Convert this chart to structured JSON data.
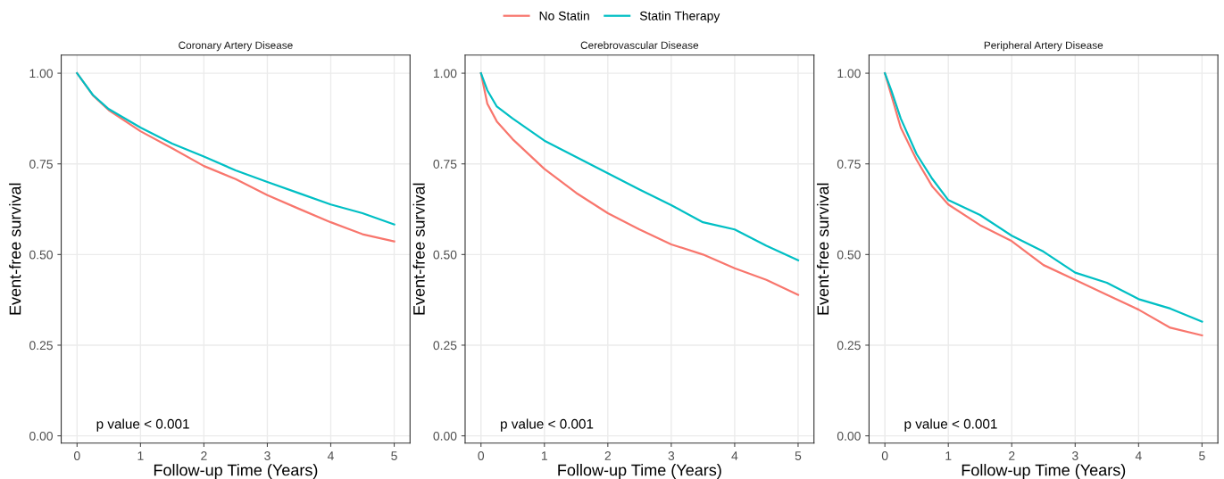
{
  "chart_data": [
    {
      "type": "line",
      "title": "Coronary Artery Disease",
      "xlabel": "Follow-up Time (Years)",
      "ylabel": "Event-free survival",
      "annotations": [
        "p value < 0.001"
      ],
      "legend": "top",
      "grid": true,
      "xlim": [
        -0.25,
        5.25
      ],
      "ylim": [
        -0.02,
        1.05
      ],
      "xticks": [
        0,
        1,
        2,
        3,
        4,
        5
      ],
      "yticks": [
        {
          "value": 0,
          "label": "0.00"
        },
        {
          "value": 0.25,
          "label": "0.25"
        },
        {
          "value": 0.5,
          "label": "0.50"
        },
        {
          "value": 0.75,
          "label": "0.75"
        },
        {
          "value": 1,
          "label": "1.00"
        }
      ],
      "x": [
        0,
        0.25,
        0.5,
        1,
        1.5,
        2,
        2.5,
        3,
        3.5,
        4,
        4.5,
        5
      ],
      "series": [
        {
          "name": "No Statin",
          "color": "#f8766d",
          "values": [
            1.0,
            0.939,
            0.898,
            0.84,
            0.793,
            0.744,
            0.708,
            0.664,
            0.626,
            0.589,
            0.556,
            0.536
          ]
        },
        {
          "name": "Statin Therapy",
          "color": "#00bfc4",
          "values": [
            1.0,
            0.94,
            0.901,
            0.85,
            0.806,
            0.77,
            0.732,
            0.7,
            0.669,
            0.638,
            0.614,
            0.583
          ]
        }
      ]
    },
    {
      "type": "line",
      "title": "Cerebrovascular Disease",
      "xlabel": "Follow-up Time (Years)",
      "ylabel": "Event-free survival",
      "annotations": [
        "p value < 0.001"
      ],
      "grid": true,
      "xlim": [
        -0.25,
        5.25
      ],
      "ylim": [
        -0.02,
        1.05
      ],
      "xticks": [
        0,
        1,
        2,
        3,
        4,
        5
      ],
      "yticks": [
        {
          "value": 0,
          "label": "0.00"
        },
        {
          "value": 0.25,
          "label": "0.25"
        },
        {
          "value": 0.5,
          "label": "0.50"
        },
        {
          "value": 0.75,
          "label": "0.75"
        },
        {
          "value": 1,
          "label": "1.00"
        }
      ],
      "x": [
        0,
        0.1,
        0.25,
        0.5,
        1,
        1.5,
        2,
        2.5,
        3,
        3.5,
        4,
        4.5,
        5
      ],
      "series": [
        {
          "color": "#f8766d",
          "values": [
            1.0,
            0.916,
            0.867,
            0.818,
            0.736,
            0.67,
            0.614,
            0.569,
            0.528,
            0.5,
            0.462,
            0.43,
            0.389
          ]
        },
        {
          "color": "#00bfc4",
          "values": [
            1.0,
            0.953,
            0.908,
            0.875,
            0.814,
            0.769,
            0.724,
            0.679,
            0.636,
            0.589,
            0.569,
            0.524,
            0.484
          ]
        }
      ]
    },
    {
      "type": "line",
      "title": "Peripheral Artery Disease",
      "xlabel": "Follow-up Time (Years)",
      "ylabel": "Event-free survival",
      "annotations": [
        "p value < 0.001"
      ],
      "grid": true,
      "xlim": [
        -0.25,
        5.25
      ],
      "ylim": [
        -0.02,
        1.05
      ],
      "xticks": [
        0,
        1,
        2,
        3,
        4,
        5
      ],
      "yticks": [
        {
          "value": 0,
          "label": "0.00"
        },
        {
          "value": 0.25,
          "label": "0.25"
        },
        {
          "value": 0.5,
          "label": "0.50"
        },
        {
          "value": 0.75,
          "label": "0.75"
        },
        {
          "value": 1,
          "label": "1.00"
        }
      ],
      "x": [
        0,
        0.1,
        0.25,
        0.5,
        0.75,
        1,
        1.5,
        2,
        2.5,
        3,
        3.5,
        4,
        4.5,
        5
      ],
      "series": [
        {
          "color": "#f8766d",
          "values": [
            1.0,
            0.94,
            0.85,
            0.761,
            0.687,
            0.638,
            0.581,
            0.537,
            0.471,
            0.43,
            0.389,
            0.348,
            0.298,
            0.277
          ]
        },
        {
          "color": "#00bfc4",
          "values": [
            1.0,
            0.953,
            0.875,
            0.777,
            0.708,
            0.65,
            0.609,
            0.552,
            0.508,
            0.45,
            0.422,
            0.377,
            0.351,
            0.315
          ]
        }
      ]
    }
  ]
}
